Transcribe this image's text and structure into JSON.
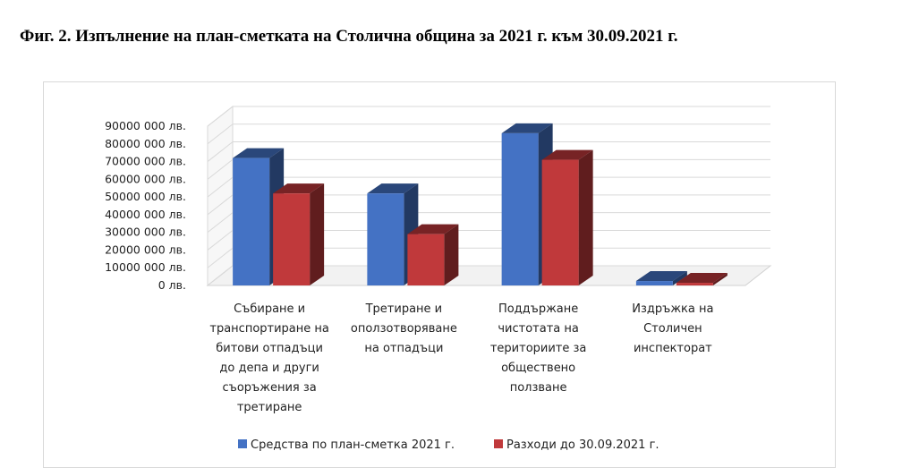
{
  "figure": {
    "title": "Фиг. 2. Изпълнение на план-сметката на Столична община за 2021 г. към 30.09.2021 г."
  },
  "chart_data": {
    "type": "bar",
    "style": "3d-clustered-column",
    "title": "",
    "categories": [
      [
        "Събиране и",
        "транспортиране на",
        "битови отпадъци",
        "до депа и други",
        "съоръжения за",
        "третиране"
      ],
      [
        "Третиране и",
        "оползотворяване",
        "на отпадъци"
      ],
      [
        "Поддържане",
        "чистотата на",
        "териториите за",
        "обществено",
        "ползване"
      ],
      [
        "Издръжка на",
        "Столичен",
        "инспекторат"
      ]
    ],
    "series": [
      {
        "name": "Средства по план-сметка 2021  г.",
        "color": "#4472c4",
        "values": [
          72000000,
          52000000,
          86000000,
          2500000
        ]
      },
      {
        "name": "Разходи  до 30.09.2021  г.",
        "color": "#c0393b",
        "values": [
          52000000,
          29000000,
          71000000,
          1500000
        ]
      }
    ],
    "y_ticks": [
      "0 лв.",
      "10000 000 лв.",
      "20000 000 лв.",
      "30000 000 лв.",
      "40000 000 лв.",
      "50000 000 лв.",
      "60000 000 лв.",
      "70000 000 лв.",
      "80000 000 лв.",
      "90000 000 лв."
    ],
    "ylim": [
      0,
      90000000
    ],
    "grid": true,
    "legend": "bottom"
  }
}
